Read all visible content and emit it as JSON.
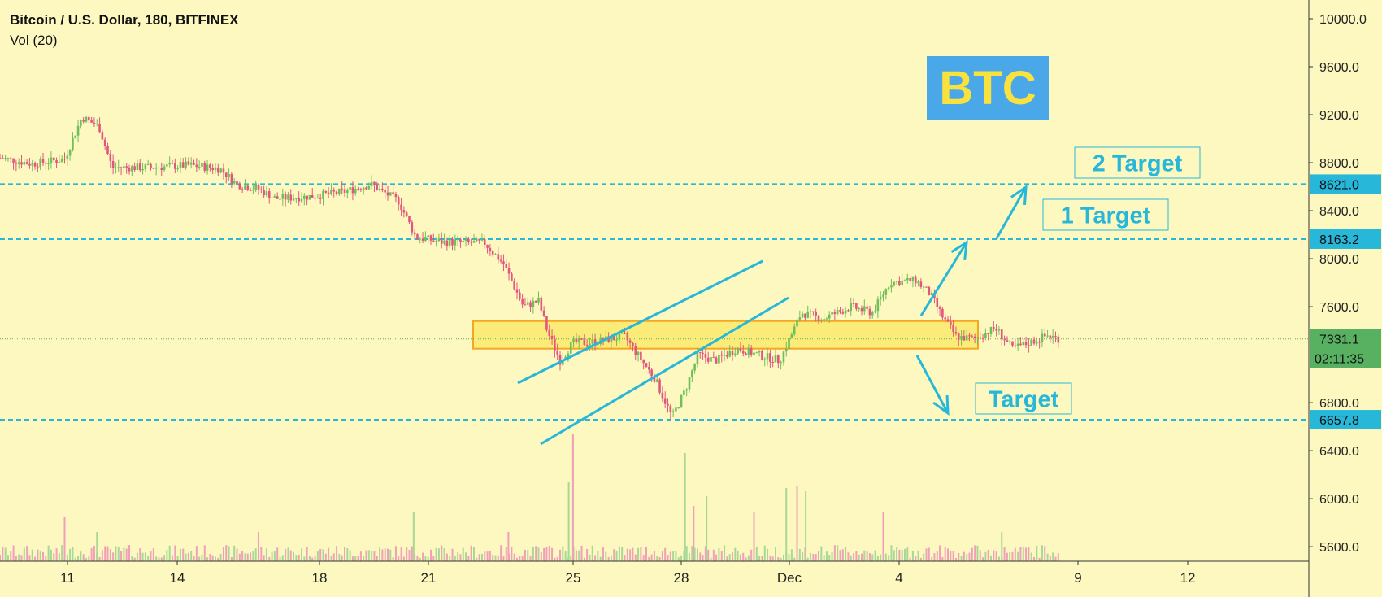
{
  "header": {
    "symbol_title": "Bitcoin / U.S. Dollar, 180, BITFINEX",
    "indicator": "Vol (20)"
  },
  "colors": {
    "background": "#fdf8c0",
    "up": "#6fbf5b",
    "down": "#e3557d",
    "cyan": "#27b7d9",
    "zone_fill": "#f9e23e",
    "zone_border": "#f5a623",
    "badge_bg": "#4aa8e8",
    "badge_text": "#f9e23e",
    "last_price_bg": "#58b061"
  },
  "annotations": {
    "badge": "BTC",
    "target_2": "2 Target",
    "target_1": "1 Target",
    "target_down": "Target"
  },
  "chart_data": {
    "type": "candlestick",
    "title": "Bitcoin / U.S. Dollar, 180, BITFINEX",
    "timeframe": "180",
    "x_ticks": [
      "11",
      "14",
      "18",
      "21",
      "25",
      "28",
      "Dec",
      "4",
      "9",
      "12"
    ],
    "y_ticks": [
      "10000.0",
      "9600.0",
      "9200.0",
      "8800.0",
      "8400.0",
      "8000.0",
      "7600.0",
      "6800.0",
      "6400.0",
      "6000.0",
      "5600.0"
    ],
    "ylim": [
      5400,
      10150
    ],
    "last_price": 7331.1,
    "last_price_label": "7331.1",
    "countdown": "02:11:35",
    "horizontal_levels": [
      {
        "value": 8621.0,
        "label": "8621.0"
      },
      {
        "value": 8163.2,
        "label": "8163.2"
      },
      {
        "value": 6657.8,
        "label": "6657.8"
      }
    ],
    "zone": {
      "low": 7250,
      "high": 7480
    },
    "price_path": [
      {
        "x": 0,
        "y": 8840
      },
      {
        "x": 1.5,
        "y": 8790
      },
      {
        "x": 3.0,
        "y": 8830
      },
      {
        "x": 3.8,
        "y": 9180
      },
      {
        "x": 4.6,
        "y": 9100
      },
      {
        "x": 5.2,
        "y": 8760
      },
      {
        "x": 7.0,
        "y": 8760
      },
      {
        "x": 8.8,
        "y": 8780
      },
      {
        "x": 10.2,
        "y": 8750
      },
      {
        "x": 11.0,
        "y": 8620
      },
      {
        "x": 12.0,
        "y": 8580
      },
      {
        "x": 12.8,
        "y": 8500
      },
      {
        "x": 14.5,
        "y": 8520
      },
      {
        "x": 16.0,
        "y": 8560
      },
      {
        "x": 17.2,
        "y": 8620
      },
      {
        "x": 18.5,
        "y": 8480
      },
      {
        "x": 19.3,
        "y": 8180
      },
      {
        "x": 20.5,
        "y": 8140
      },
      {
        "x": 22.5,
        "y": 8130
      },
      {
        "x": 23.4,
        "y": 7950
      },
      {
        "x": 24.3,
        "y": 7600
      },
      {
        "x": 25.0,
        "y": 7650
      },
      {
        "x": 25.4,
        "y": 7400
      },
      {
        "x": 26.0,
        "y": 7150
      },
      {
        "x": 26.6,
        "y": 7300
      },
      {
        "x": 27.3,
        "y": 7300
      },
      {
        "x": 29.0,
        "y": 7350
      },
      {
        "x": 29.8,
        "y": 7150
      },
      {
        "x": 30.4,
        "y": 7000
      },
      {
        "x": 31.2,
        "y": 6680
      },
      {
        "x": 31.8,
        "y": 6900
      },
      {
        "x": 32.4,
        "y": 7200
      },
      {
        "x": 33.2,
        "y": 7150
      },
      {
        "x": 34.2,
        "y": 7250
      },
      {
        "x": 35.2,
        "y": 7200
      },
      {
        "x": 36.2,
        "y": 7150
      },
      {
        "x": 37.2,
        "y": 7550
      },
      {
        "x": 38.2,
        "y": 7500
      },
      {
        "x": 39.5,
        "y": 7600
      },
      {
        "x": 40.5,
        "y": 7550
      },
      {
        "x": 41.3,
        "y": 7800
      },
      {
        "x": 42.5,
        "y": 7820
      },
      {
        "x": 43.2,
        "y": 7700
      },
      {
        "x": 43.8,
        "y": 7500
      },
      {
        "x": 44.4,
        "y": 7350
      },
      {
        "x": 45.2,
        "y": 7330
      },
      {
        "x": 46.2,
        "y": 7420
      },
      {
        "x": 47.0,
        "y": 7250
      },
      {
        "x": 47.8,
        "y": 7300
      },
      {
        "x": 48.6,
        "y": 7360
      },
      {
        "x": 49.2,
        "y": 7331
      }
    ],
    "volume": [
      {
        "x": 23.6,
        "v": 36
      },
      {
        "x": 26.4,
        "v": 97
      },
      {
        "x": 26.6,
        "v": 156
      },
      {
        "x": 31.8,
        "v": 133
      },
      {
        "x": 37.0,
        "v": 93
      },
      {
        "x": 37.4,
        "v": 86
      },
      {
        "x": 3.0,
        "v": 54
      },
      {
        "x": 4.5,
        "v": 36
      },
      {
        "x": 12.0,
        "v": 36
      },
      {
        "x": 19.2,
        "v": 60
      },
      {
        "x": 32.2,
        "v": 68
      },
      {
        "x": 32.8,
        "v": 80
      },
      {
        "x": 35.0,
        "v": 60
      },
      {
        "x": 36.5,
        "v": 90
      },
      {
        "x": 41.0,
        "v": 60
      },
      {
        "x": 46.5,
        "v": 36
      }
    ]
  }
}
